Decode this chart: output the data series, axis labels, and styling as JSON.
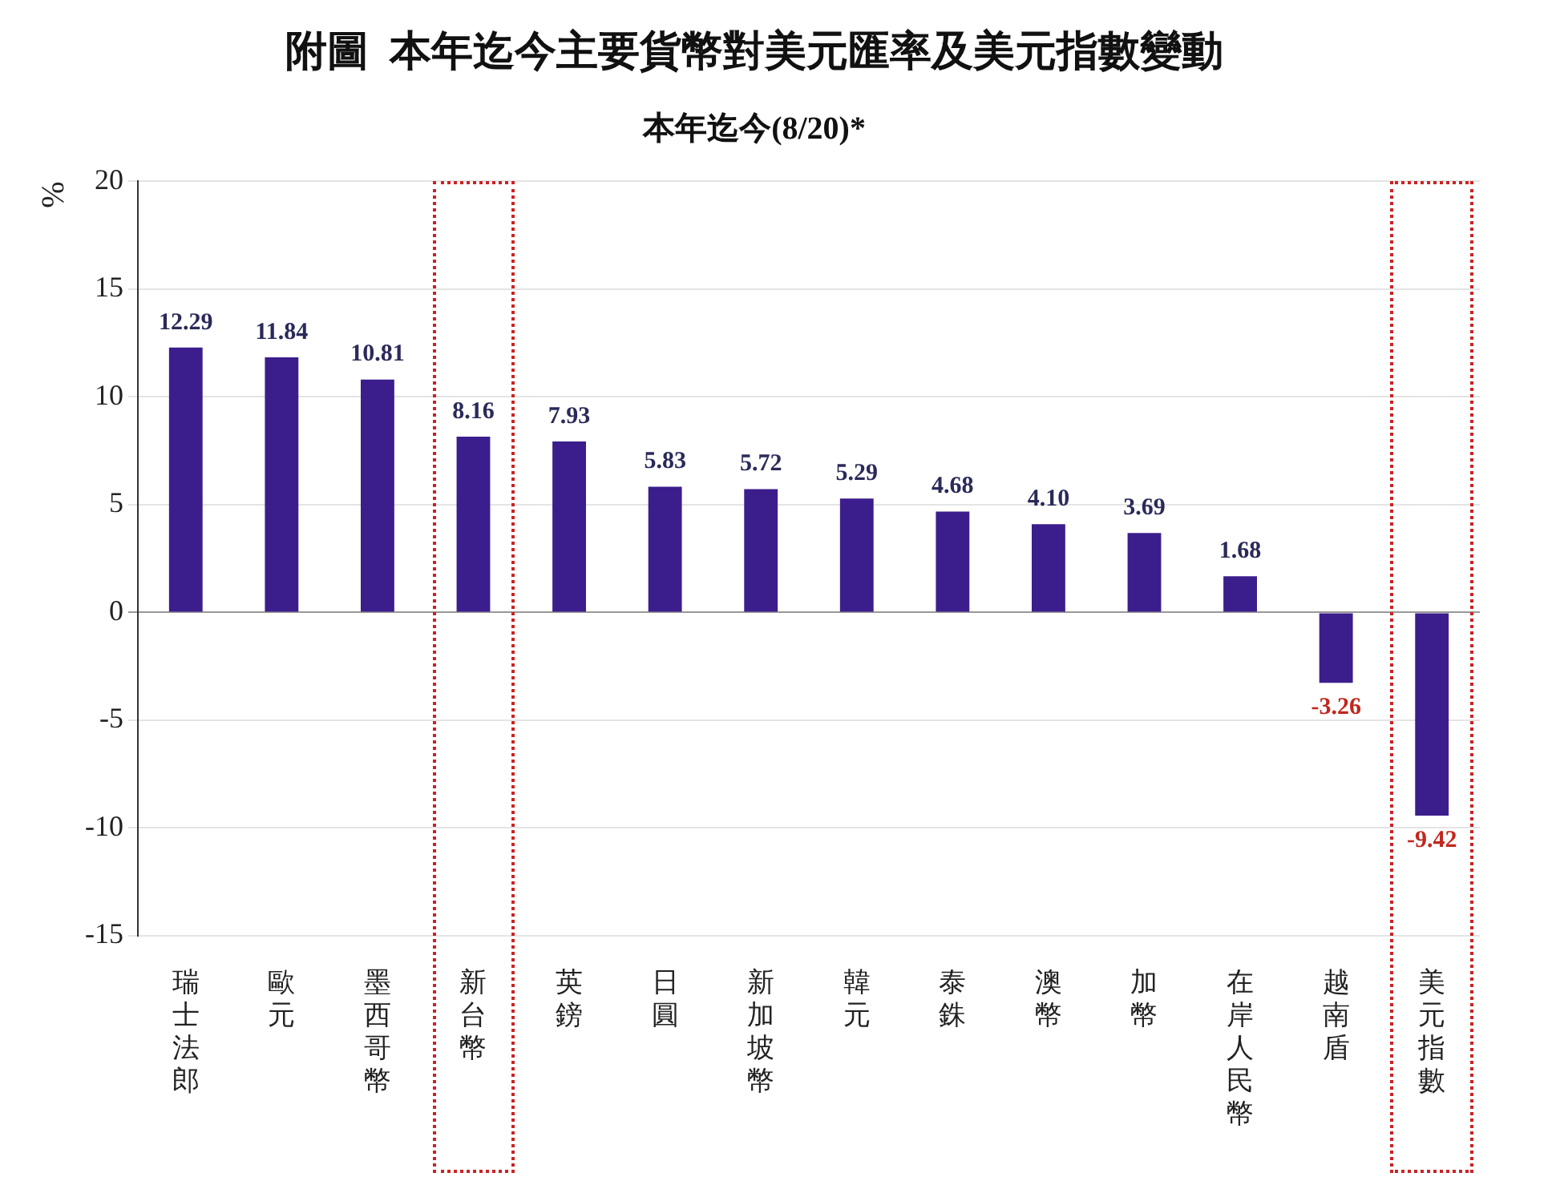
{
  "chart_data": {
    "type": "bar",
    "title": "附圖  本年迄今主要貨幣對美元匯率及美元指數變動",
    "subtitle": "本年迄今(8/20)*",
    "ylabel": "%",
    "categories": [
      "瑞士法郎",
      "歐元",
      "墨西哥幣",
      "新台幣",
      "英鎊",
      "日圓",
      "新加坡幣",
      "韓元",
      "泰銖",
      "澳幣",
      "加幣",
      "在岸人民幣",
      "越南盾",
      "美元指數"
    ],
    "values": [
      12.29,
      11.84,
      10.81,
      8.16,
      7.93,
      5.83,
      5.72,
      5.29,
      4.68,
      4.1,
      3.69,
      1.68,
      -3.26,
      -9.42
    ],
    "color": "#3b1e8c",
    "value_labels": [
      "12.29",
      "11.84",
      "10.81",
      "8.16",
      "7.93",
      "5.83",
      "5.72",
      "5.29",
      "4.68",
      "4.10",
      "3.69",
      "1.68",
      "-3.26",
      "-9.42"
    ],
    "ylim": [
      -15,
      20
    ],
    "yticks": [
      -15,
      -10,
      -5,
      0,
      5,
      10,
      15,
      20
    ],
    "grid": "y"
  }
}
